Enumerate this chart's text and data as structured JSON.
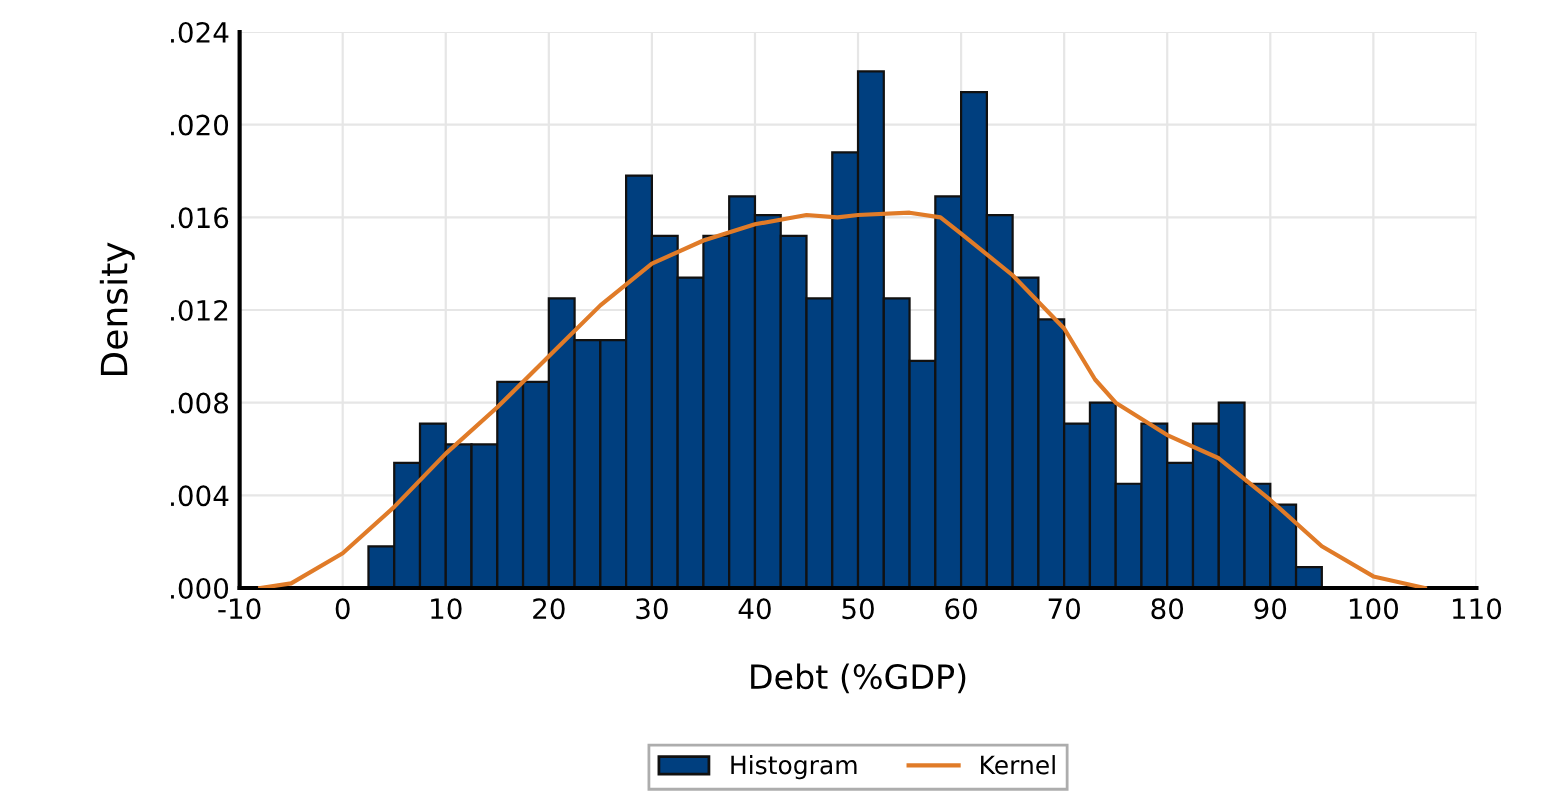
{
  "chart_data": {
    "type": "histogram",
    "xlabel": "Debt (%GDP)",
    "ylabel": "Density",
    "xlim": [
      -10,
      110
    ],
    "xticks": [
      -10,
      0,
      10,
      20,
      30,
      40,
      50,
      60,
      70,
      80,
      90,
      100,
      110
    ],
    "ylim": [
      0,
      0.024
    ],
    "yticks": [
      {
        "value": 0,
        "label": ".000"
      },
      {
        "value": 0.004,
        "label": ".004"
      },
      {
        "value": 0.008,
        "label": ".008"
      },
      {
        "value": 0.012,
        "label": ".012"
      },
      {
        "value": 0.016,
        "label": ".016"
      },
      {
        "value": 0.02,
        "label": ".020"
      },
      {
        "value": 0.024,
        "label": ".024"
      }
    ],
    "grid": true,
    "legend": "bottom",
    "series": [
      {
        "name": "Histogram",
        "color": "#003f7f",
        "bins": [
          2.5,
          5,
          7.5,
          10,
          12.5,
          15,
          17.5,
          20,
          22.5,
          25,
          27.5,
          30,
          32.5,
          35,
          37.5,
          40,
          42.5,
          45,
          47.5,
          50,
          52.5,
          55,
          57.5,
          60,
          62.5,
          65,
          67.5,
          70,
          72.5,
          75,
          77.5,
          80,
          82.5,
          85,
          87.5,
          90,
          92.5,
          95
        ],
        "values": [
          0.0018,
          0.0054,
          0.0071,
          0.0062,
          0.0062,
          0.0089,
          0.0089,
          0.0125,
          0.0107,
          0.0107,
          0.0178,
          0.0152,
          0.0134,
          0.0152,
          0.0169,
          0.0161,
          0.0152,
          0.0125,
          0.0188,
          0.0223,
          0.0125,
          0.0098,
          0.0169,
          0.0214,
          0.0161,
          0.0134,
          0.0116,
          0.0071,
          0.008,
          0.0045,
          0.0071,
          0.0054,
          0.0071,
          0.008,
          0.0045,
          0.0036,
          0.0009
        ]
      },
      {
        "name": "Kernel",
        "type": "line",
        "color": "#e07b28",
        "x": [
          -8,
          -5,
          0,
          5,
          10,
          15,
          20,
          25,
          30,
          35,
          40,
          45,
          48,
          50,
          55,
          58,
          60,
          65,
          70,
          73,
          75,
          80,
          85,
          90,
          95,
          100,
          105
        ],
        "values": [
          0,
          0.0002,
          0.0015,
          0.0035,
          0.0058,
          0.0078,
          0.01,
          0.0122,
          0.014,
          0.015,
          0.0157,
          0.0161,
          0.016,
          0.0161,
          0.0162,
          0.016,
          0.0153,
          0.0135,
          0.0112,
          0.009,
          0.008,
          0.0066,
          0.0056,
          0.0038,
          0.0018,
          0.0005,
          0
        ]
      }
    ]
  }
}
